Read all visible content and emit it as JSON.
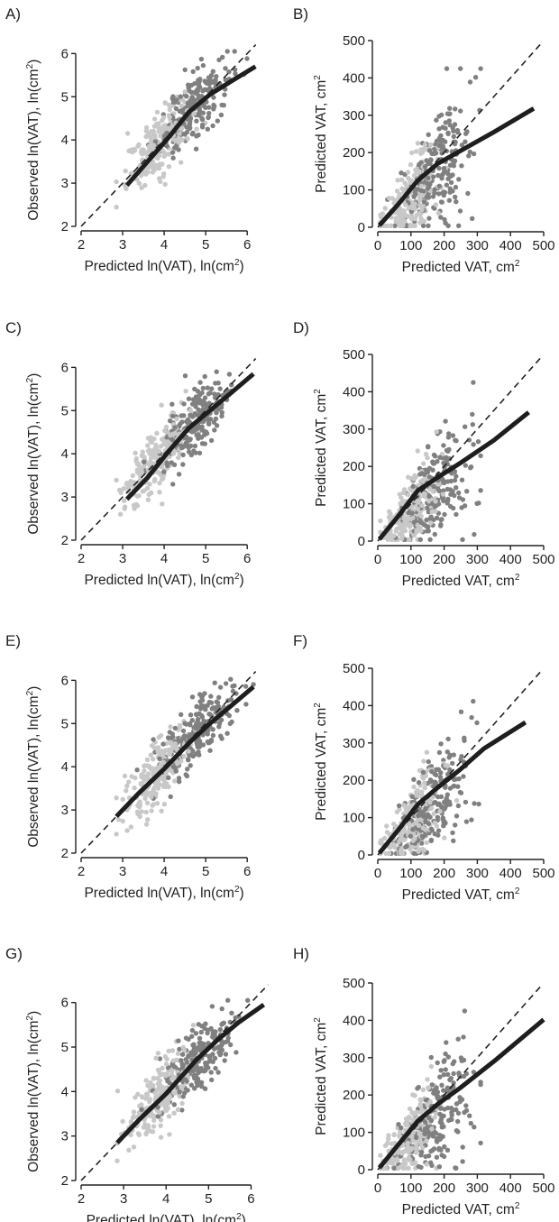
{
  "colors": {
    "light_points": "#c8c8c8",
    "dark_points": "#808080",
    "fit_line": "#1e1e1e",
    "identity_line": "#222222"
  },
  "chart_data": [
    {
      "panel": "A)",
      "type": "scatter",
      "kind": "log",
      "xlabel": {
        "main": "Predicted ln(VAT), ln(cm",
        "sup": "2",
        "tail": ")"
      },
      "ylabel": {
        "main": "Observed ln(VAT), ln(cm",
        "sup": "2",
        "tail": ")"
      },
      "xlim": [
        2,
        6.3
      ],
      "ylim": [
        2,
        6.3
      ],
      "xticks": [
        2,
        3,
        4,
        5,
        6
      ],
      "yticks": [
        2,
        3,
        4,
        5,
        6
      ],
      "identity_line": true,
      "fit": {
        "x": [
          3.1,
          3.6,
          4.1,
          4.6,
          5.1,
          5.6,
          6.2
        ],
        "y": [
          2.95,
          3.5,
          4.05,
          4.65,
          5.05,
          5.35,
          5.7
        ]
      }
    },
    {
      "panel": "B)",
      "type": "scatter",
      "kind": "linear",
      "xlabel": {
        "main": "Predicted VAT, cm",
        "sup": "2",
        "tail": ""
      },
      "ylabel": {
        "main": "Predicted VAT, cm",
        "sup": "2",
        "tail": ""
      },
      "xlim": [
        0,
        500
      ],
      "ylim": [
        0,
        500
      ],
      "xticks": [
        0,
        100,
        200,
        300,
        400,
        500
      ],
      "yticks": [
        0,
        100,
        200,
        300,
        400,
        500
      ],
      "identity_line": true,
      "fit": {
        "x": [
          5,
          60,
          120,
          180,
          250,
          350,
          470
        ],
        "y": [
          5,
          60,
          125,
          170,
          205,
          255,
          318
        ]
      }
    },
    {
      "panel": "C)",
      "type": "scatter",
      "kind": "log",
      "xlabel": {
        "main": "Predicted ln(VAT), ln(cm",
        "sup": "2",
        "tail": ")"
      },
      "ylabel": {
        "main": "Observed ln(VAT), ln(cm",
        "sup": "2",
        "tail": ")"
      },
      "xlim": [
        2,
        6.3
      ],
      "ylim": [
        2,
        6.3
      ],
      "xticks": [
        2,
        3,
        4,
        5,
        6
      ],
      "yticks": [
        2,
        3,
        4,
        5,
        6
      ],
      "identity_line": true,
      "fit": {
        "x": [
          3.1,
          3.6,
          4.1,
          4.6,
          5.1,
          5.6,
          6.15
        ],
        "y": [
          2.95,
          3.45,
          4.05,
          4.6,
          5.0,
          5.4,
          5.85
        ]
      }
    },
    {
      "panel": "D)",
      "type": "scatter",
      "kind": "linear",
      "xlabel": {
        "main": "Predicted VAT, cm",
        "sup": "2",
        "tail": ""
      },
      "ylabel": {
        "main": "Predicted VAT, cm",
        "sup": "2",
        "tail": ""
      },
      "xlim": [
        0,
        500
      ],
      "ylim": [
        0,
        500
      ],
      "xticks": [
        0,
        100,
        200,
        300,
        400,
        500
      ],
      "yticks": [
        0,
        100,
        200,
        300,
        400,
        500
      ],
      "identity_line": true,
      "fit": {
        "x": [
          5,
          60,
          120,
          180,
          250,
          350,
          455
        ],
        "y": [
          5,
          65,
          135,
          170,
          210,
          270,
          345
        ]
      }
    },
    {
      "panel": "E)",
      "type": "scatter",
      "kind": "log",
      "xlabel": {
        "main": "Predicted ln(VAT), ln(cm",
        "sup": "2",
        "tail": ")"
      },
      "ylabel": {
        "main": "Observed ln(VAT), ln(cm",
        "sup": "2",
        "tail": ")"
      },
      "xlim": [
        2,
        6.3
      ],
      "ylim": [
        2,
        6.3
      ],
      "xticks": [
        2,
        3,
        4,
        5,
        6
      ],
      "yticks": [
        2,
        3,
        4,
        5,
        6
      ],
      "identity_line": true,
      "fit": {
        "x": [
          2.85,
          3.4,
          4.0,
          4.6,
          5.1,
          5.6,
          6.15
        ],
        "y": [
          2.85,
          3.4,
          3.95,
          4.55,
          5.0,
          5.4,
          5.85
        ]
      }
    },
    {
      "panel": "F)",
      "type": "scatter",
      "kind": "linear",
      "xlabel": {
        "main": "Predicted VAT, cm",
        "sup": "2",
        "tail": ""
      },
      "ylabel": {
        "main": "Predicted VAT, cm",
        "sup": "2",
        "tail": ""
      },
      "xlim": [
        0,
        500
      ],
      "ylim": [
        0,
        500
      ],
      "xticks": [
        0,
        100,
        200,
        300,
        400,
        500
      ],
      "yticks": [
        0,
        100,
        200,
        300,
        400,
        500
      ],
      "identity_line": true,
      "fit": {
        "x": [
          5,
          60,
          120,
          180,
          250,
          320,
          445
        ],
        "y": [
          5,
          65,
          135,
          180,
          230,
          285,
          355
        ]
      }
    },
    {
      "panel": "G)",
      "type": "scatter",
      "kind": "log",
      "xlabel": {
        "main": "Predicted ln(VAT), ln(cm",
        "sup": "2",
        "tail": ")"
      },
      "ylabel": {
        "main": "Observed ln(VAT), ln(cm",
        "sup": "2",
        "tail": ")"
      },
      "xlim": [
        2,
        6.5
      ],
      "ylim": [
        2,
        6.5
      ],
      "xticks": [
        2,
        3,
        4,
        5,
        6
      ],
      "yticks": [
        2,
        3,
        4,
        5,
        6
      ],
      "identity_line": true,
      "fit": {
        "x": [
          2.85,
          3.4,
          4.0,
          4.7,
          5.2,
          5.7,
          6.3
        ],
        "y": [
          2.85,
          3.4,
          3.95,
          4.7,
          5.15,
          5.55,
          5.95
        ]
      }
    },
    {
      "panel": "H)",
      "type": "scatter",
      "kind": "linear",
      "xlabel": {
        "main": "Predicted VAT, cm",
        "sup": "2",
        "tail": ""
      },
      "ylabel": {
        "main": "Predicted VAT, cm",
        "sup": "2",
        "tail": ""
      },
      "xlim": [
        0,
        500
      ],
      "ylim": [
        0,
        500
      ],
      "xticks": [
        0,
        100,
        200,
        300,
        400,
        500
      ],
      "yticks": [
        0,
        100,
        200,
        300,
        400,
        500
      ],
      "identity_line": true,
      "fit": {
        "x": [
          5,
          60,
          120,
          180,
          250,
          350,
          500
        ],
        "y": [
          5,
          65,
          130,
          175,
          220,
          290,
          402
        ]
      }
    }
  ]
}
